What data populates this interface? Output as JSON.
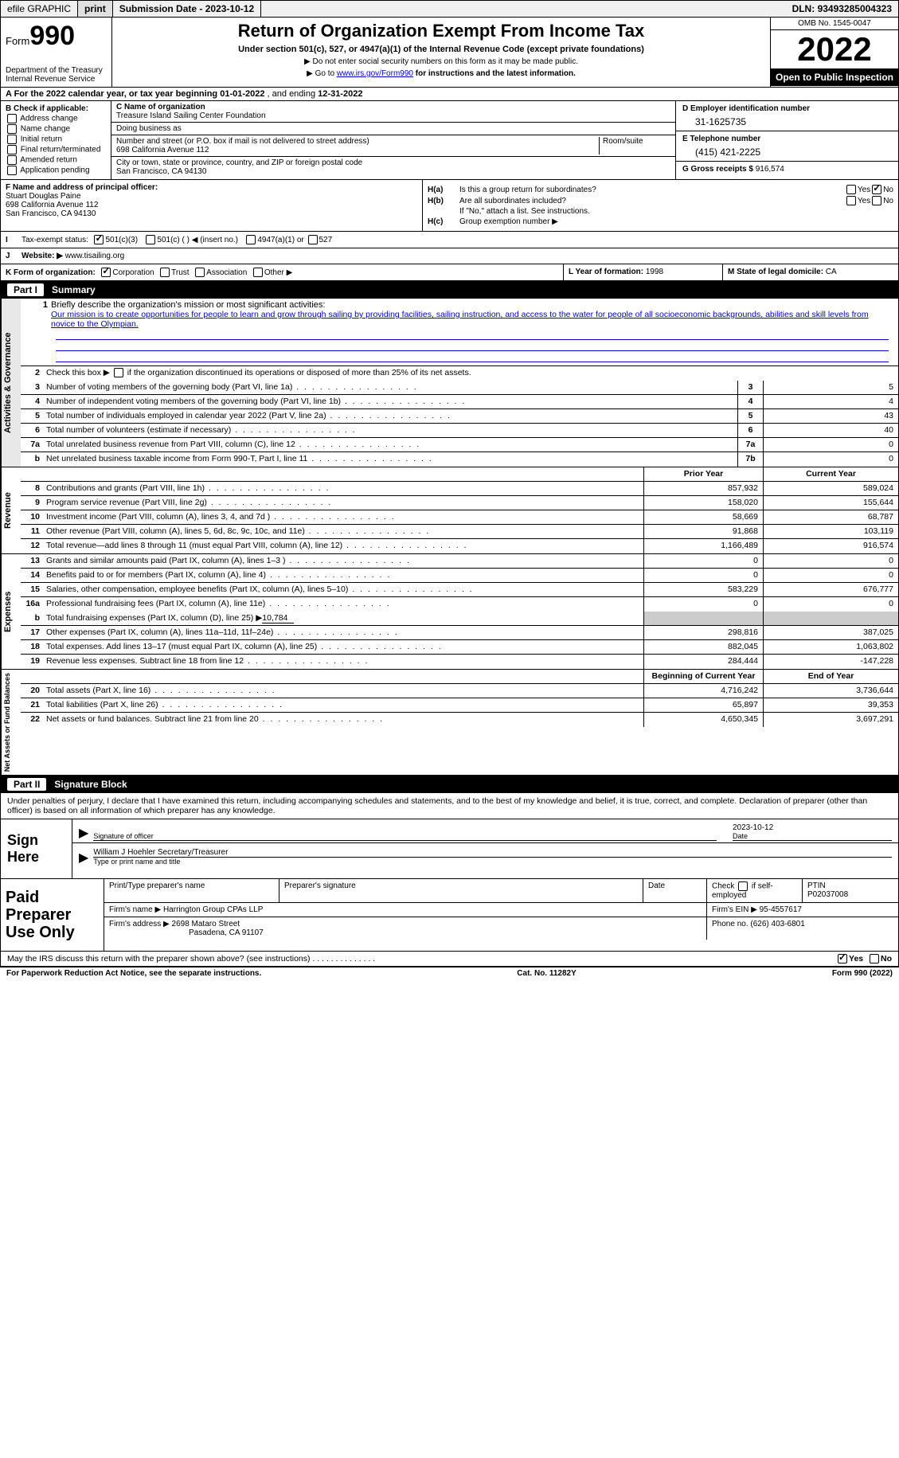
{
  "topbar": {
    "efile_label": "efile GRAPHIC",
    "print_btn": "print",
    "submission_label": "Submission Date - ",
    "submission_date": "2023-10-12",
    "dln_label": "DLN: ",
    "dln": "93493285004323"
  },
  "header": {
    "form_word": "Form",
    "form_num": "990",
    "dept": "Department of the Treasury",
    "irs": "Internal Revenue Service",
    "title": "Return of Organization Exempt From Income Tax",
    "subtitle": "Under section 501(c), 527, or 4947(a)(1) of the Internal Revenue Code (except private foundations)",
    "note1": "▶ Do not enter social security numbers on this form as it may be made public.",
    "note2_pre": "▶ Go to ",
    "note2_link": "www.irs.gov/Form990",
    "note2_post": " for instructions and the latest information.",
    "omb": "OMB No. 1545-0047",
    "year": "2022",
    "open": "Open to Public Inspection"
  },
  "section_a": {
    "pre": "A For the 2022 calendar year, or tax year beginning ",
    "begin": "01-01-2022",
    "mid": " , and ending ",
    "end": "12-31-2022"
  },
  "section_b": {
    "label": "B Check if applicable:",
    "opts": [
      "Address change",
      "Name change",
      "Initial return",
      "Final return/terminated",
      "Amended return",
      "Application pending"
    ]
  },
  "section_c": {
    "name_lbl": "C Name of organization",
    "name": "Treasure Island Sailing Center Foundation",
    "dba_lbl": "Doing business as",
    "dba": "",
    "street_lbl": "Number and street (or P.O. box if mail is not delivered to street address)",
    "room_lbl": "Room/suite",
    "street": "698 California Avenue 112",
    "city_lbl": "City or town, state or province, country, and ZIP or foreign postal code",
    "city": "San Francisco, CA  94130"
  },
  "section_d": {
    "lbl": "D Employer identification number",
    "val": "31-1625735"
  },
  "section_e": {
    "lbl": "E Telephone number",
    "val": "(415) 421-2225"
  },
  "section_g": {
    "lbl": "G Gross receipts $ ",
    "val": "916,574"
  },
  "section_f": {
    "lbl": "F  Name and address of principal officer:",
    "name": "Stuart Douglas Paine",
    "addr1": "698 California Avenue 112",
    "addr2": "San Francisco, CA  94130"
  },
  "section_h": {
    "a_lbl": "H(a)",
    "a_q": "Is this a group return for subordinates?",
    "b_lbl": "H(b)",
    "b_q": "Are all subordinates included?",
    "b_note": "If \"No,\" attach a list. See instructions.",
    "c_lbl": "H(c)",
    "c_q": "Group exemption number ▶",
    "yes": "Yes",
    "no": "No"
  },
  "section_i": {
    "lbl": "I",
    "text": "Tax-exempt status:",
    "opt1": "501(c)(3)",
    "opt2": "501(c) (   ) ◀ (insert no.)",
    "opt3": "4947(a)(1) or",
    "opt4": "527"
  },
  "section_j": {
    "lbl": "J",
    "text": "Website: ▶",
    "val": "www.tisailing.org"
  },
  "section_k": {
    "lbl": "K Form of organization:",
    "opts": [
      "Corporation",
      "Trust",
      "Association",
      "Other ▶"
    ]
  },
  "section_l": {
    "lbl": "L Year of formation: ",
    "val": "1998"
  },
  "section_m": {
    "lbl": "M State of legal domicile: ",
    "val": "CA"
  },
  "part1": {
    "num": "Part I",
    "title": "Summary"
  },
  "tabs": {
    "ag": "Activities & Governance",
    "rev": "Revenue",
    "exp": "Expenses",
    "net": "Net Assets or Fund Balances"
  },
  "line1": {
    "num": "1",
    "lbl": "Briefly describe the organization's mission or most significant activities:",
    "text": "Our mission is to create opportunities for people to learn and grow through sailing by providing facilities, sailing instruction, and access to the water for people of all socioeconomic backgrounds, abilities and skill levels from novice to the Olympian."
  },
  "line2": {
    "num": "2",
    "lbl": "Check this box ▶",
    "post": " if the organization discontinued its operations or disposed of more than 25% of its net assets."
  },
  "gov_lines": [
    {
      "num": "3",
      "desc": "Number of voting members of the governing body (Part VI, line 1a)",
      "box": "3",
      "val": "5"
    },
    {
      "num": "4",
      "desc": "Number of independent voting members of the governing body (Part VI, line 1b)",
      "box": "4",
      "val": "4"
    },
    {
      "num": "5",
      "desc": "Total number of individuals employed in calendar year 2022 (Part V, line 2a)",
      "box": "5",
      "val": "43"
    },
    {
      "num": "6",
      "desc": "Total number of volunteers (estimate if necessary)",
      "box": "6",
      "val": "40"
    },
    {
      "num": "7a",
      "desc": "Total unrelated business revenue from Part VIII, column (C), line 12",
      "box": "7a",
      "val": "0"
    },
    {
      "num": "b",
      "desc": "Net unrelated business taxable income from Form 990-T, Part I, line 11",
      "box": "7b",
      "val": "0"
    }
  ],
  "col_hdrs": {
    "prior": "Prior Year",
    "curr": "Current Year",
    "begin": "Beginning of Current Year",
    "end": "End of Year"
  },
  "rev_lines": [
    {
      "num": "8",
      "desc": "Contributions and grants (Part VIII, line 1h)",
      "prior": "857,932",
      "curr": "589,024"
    },
    {
      "num": "9",
      "desc": "Program service revenue (Part VIII, line 2g)",
      "prior": "158,020",
      "curr": "155,644"
    },
    {
      "num": "10",
      "desc": "Investment income (Part VIII, column (A), lines 3, 4, and 7d )",
      "prior": "58,669",
      "curr": "68,787"
    },
    {
      "num": "11",
      "desc": "Other revenue (Part VIII, column (A), lines 5, 6d, 8c, 9c, 10c, and 11e)",
      "prior": "91,868",
      "curr": "103,119"
    },
    {
      "num": "12",
      "desc": "Total revenue—add lines 8 through 11 (must equal Part VIII, column (A), line 12)",
      "prior": "1,166,489",
      "curr": "916,574"
    }
  ],
  "exp_lines": [
    {
      "num": "13",
      "desc": "Grants and similar amounts paid (Part IX, column (A), lines 1–3 )",
      "prior": "0",
      "curr": "0"
    },
    {
      "num": "14",
      "desc": "Benefits paid to or for members (Part IX, column (A), line 4)",
      "prior": "0",
      "curr": "0"
    },
    {
      "num": "15",
      "desc": "Salaries, other compensation, employee benefits (Part IX, column (A), lines 5–10)",
      "prior": "583,229",
      "curr": "676,777"
    },
    {
      "num": "16a",
      "desc": "Professional fundraising fees (Part IX, column (A), line 11e)",
      "prior": "0",
      "curr": "0"
    }
  ],
  "line16b": {
    "num": "b",
    "desc": "Total fundraising expenses (Part IX, column (D), line 25) ▶",
    "val": "10,784"
  },
  "exp_lines2": [
    {
      "num": "17",
      "desc": "Other expenses (Part IX, column (A), lines 11a–11d, 11f–24e)",
      "prior": "298,816",
      "curr": "387,025"
    },
    {
      "num": "18",
      "desc": "Total expenses. Add lines 13–17 (must equal Part IX, column (A), line 25)",
      "prior": "882,045",
      "curr": "1,063,802"
    },
    {
      "num": "19",
      "desc": "Revenue less expenses. Subtract line 18 from line 12",
      "prior": "284,444",
      "curr": "-147,228"
    }
  ],
  "net_lines": [
    {
      "num": "20",
      "desc": "Total assets (Part X, line 16)",
      "prior": "4,716,242",
      "curr": "3,736,644"
    },
    {
      "num": "21",
      "desc": "Total liabilities (Part X, line 26)",
      "prior": "65,897",
      "curr": "39,353"
    },
    {
      "num": "22",
      "desc": "Net assets or fund balances. Subtract line 21 from line 20",
      "prior": "4,650,345",
      "curr": "3,697,291"
    }
  ],
  "part2": {
    "num": "Part II",
    "title": "Signature Block"
  },
  "sig_intro": "Under penalties of perjury, I declare that I have examined this return, including accompanying schedules and statements, and to the best of my knowledge and belief, it is true, correct, and complete. Declaration of preparer (other than officer) is based on all information of which preparer has any knowledge.",
  "sign": {
    "label": "Sign Here",
    "sig_lbl": "Signature of officer",
    "date_lbl": "Date",
    "date_val": "2023-10-12",
    "name_lbl": "Type or print name and title",
    "name_val": "William J Hoehler  Secretary/Treasurer"
  },
  "prep": {
    "label": "Paid Preparer Use Only",
    "r1": {
      "c1": "Print/Type preparer's name",
      "c2": "Preparer's signature",
      "c3": "Date",
      "c4_lbl": "Check",
      "c4_post": "if self-employed",
      "c5_lbl": "PTIN",
      "c5_val": "P02037008"
    },
    "r2": {
      "lbl": "Firm's name      ▶",
      "val": "Harrington Group CPAs LLP",
      "ein_lbl": "Firm's EIN ▶",
      "ein_val": "95-4557617"
    },
    "r3": {
      "lbl": "Firm's address ▶",
      "val1": "2698 Mataro Street",
      "val2": "Pasadena, CA  91107",
      "ph_lbl": "Phone no.",
      "ph_val": "(626) 403-6801"
    }
  },
  "footer_q": "May the IRS discuss this return with the preparer shown above? (see instructions)",
  "bottom": {
    "left": "For Paperwork Reduction Act Notice, see the separate instructions.",
    "mid": "Cat. No. 11282Y",
    "right": "Form 990 (2022)"
  }
}
